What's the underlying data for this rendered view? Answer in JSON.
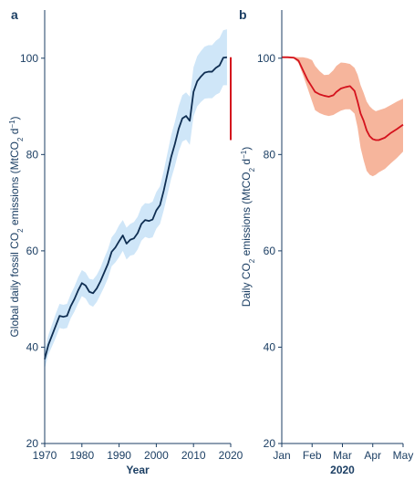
{
  "chart_data": [
    {
      "panel_label": "a",
      "type": "line",
      "xlabel": "Year",
      "ylabel_parts": [
        "Global daily fossil CO",
        "2",
        " emissions (MtCO",
        "2",
        " d",
        "−1",
        ")"
      ],
      "xlim": [
        1970,
        2020
      ],
      "ylim": [
        20,
        110
      ],
      "xticks": [
        1970,
        1980,
        1990,
        2000,
        2010,
        2020
      ],
      "yticks": [
        20,
        40,
        60,
        80,
        100
      ],
      "grid": false,
      "colors": {
        "line": "#0f2e52",
        "band": "#cfe6f8",
        "drop": "#d4121d",
        "axis": "#1b3e63"
      },
      "series": [
        {
          "x": [
            1970,
            1971,
            1972,
            1973,
            1974,
            1975,
            1976,
            1977,
            1978,
            1979,
            1980,
            1981,
            1982,
            1983,
            1984,
            1985,
            1986,
            1987,
            1988,
            1989,
            1990,
            1991,
            1992,
            1993,
            1994,
            1995,
            1996,
            1997,
            1998,
            1999,
            2000,
            2001,
            2002,
            2003,
            2004,
            2005,
            2006,
            2007,
            2008,
            2009,
            2010,
            2011,
            2012,
            2013,
            2014,
            2015,
            2016,
            2017,
            2018,
            2019
          ],
          "y": [
            37.5,
            40.5,
            42.5,
            44.5,
            46.5,
            46.3,
            46.5,
            48.5,
            50,
            51.8,
            53.3,
            52.8,
            51.5,
            51.2,
            52.2,
            53.7,
            55.5,
            57.3,
            59.8,
            60.7,
            62,
            63.2,
            61.5,
            62.3,
            62.6,
            63.7,
            65.6,
            66.4,
            66.2,
            66.5,
            68.4,
            69.5,
            72.5,
            76,
            79.5,
            82.2,
            85.3,
            87.5,
            88,
            87,
            93,
            95.2,
            96.2,
            97,
            97.2,
            97.2,
            98,
            98.5,
            100.1,
            100.2
          ],
          "band_upper": [
            39.5,
            42.5,
            44.8,
            47,
            49,
            48.8,
            49,
            51,
            52.6,
            54.5,
            56,
            55.5,
            54.2,
            54,
            55,
            56.5,
            58.5,
            60.3,
            62.8,
            63.8,
            65.3,
            66.4,
            64.8,
            65.6,
            66,
            67.1,
            69.1,
            69.9,
            69.8,
            70.2,
            72.2,
            73.4,
            76.6,
            80.3,
            84,
            86.8,
            90,
            92.3,
            92.9,
            92,
            98.1,
            100.4,
            101.5,
            102.4,
            102.7,
            102.7,
            103.6,
            104.2,
            105.8,
            106
          ],
          "band_lower": [
            35.5,
            38.5,
            40.2,
            42,
            44,
            43.8,
            44,
            46,
            47.4,
            49.1,
            50.6,
            50.1,
            48.8,
            48.4,
            49.4,
            50.9,
            52.5,
            54.3,
            56.8,
            57.6,
            58.7,
            60,
            58.2,
            59,
            59.2,
            60.3,
            62.1,
            62.9,
            62.6,
            62.8,
            64.6,
            65.6,
            68.4,
            71.7,
            75,
            77.6,
            80.6,
            82.7,
            83.1,
            82,
            87.9,
            90,
            90.9,
            91.6,
            91.7,
            91.7,
            92.4,
            92.8,
            94.4,
            94.4
          ]
        }
      ],
      "drop": {
        "x": 2020,
        "from": 100.2,
        "to": 83
      }
    },
    {
      "panel_label": "b",
      "type": "line",
      "xlabel": "2020",
      "ylabel_parts": [
        "Daily CO",
        "2",
        " emissions (MtCO",
        "2",
        " d",
        "−1",
        ")"
      ],
      "xlim": [
        0,
        4
      ],
      "ylim": [
        20,
        110
      ],
      "xticks": [
        0,
        1,
        2,
        3,
        4
      ],
      "xtick_labels": [
        "Jan",
        "Feb",
        "Mar",
        "Apr",
        "May"
      ],
      "yticks": [
        20,
        40,
        60,
        80,
        100
      ],
      "grid": false,
      "colors": {
        "line": "#d4121d",
        "band": "#f6b59c",
        "axis": "#1b3e63"
      },
      "series": [
        {
          "x": [
            0,
            0.2,
            0.4,
            0.55,
            0.7,
            0.85,
            1,
            1.1,
            1.25,
            1.4,
            1.55,
            1.7,
            1.8,
            1.95,
            2.1,
            2.25,
            2.4,
            2.5,
            2.6,
            2.7,
            2.8,
            2.9,
            3,
            3.1,
            3.2,
            3.4,
            3.6,
            3.8,
            4
          ],
          "y": [
            100.2,
            100.2,
            100.1,
            99.5,
            97.5,
            95.5,
            94,
            93,
            92.5,
            92.2,
            92,
            92.3,
            93,
            93.7,
            94,
            94.2,
            93.2,
            91,
            88.5,
            87,
            85,
            83.8,
            83.2,
            83,
            83,
            83.5,
            84.5,
            85.3,
            86.2
          ],
          "band_upper": [
            100.4,
            100.4,
            100.3,
            100.2,
            100.2,
            100,
            99.6,
            98.4,
            97.3,
            96.5,
            96.6,
            97.5,
            98.4,
            99.1,
            99,
            98.8,
            98,
            96.6,
            94.4,
            92.8,
            91,
            90,
            89.4,
            89,
            89.2,
            89.6,
            90.3,
            91,
            91.6
          ],
          "band_lower": [
            100,
            100,
            99.9,
            99,
            96.5,
            93.8,
            91,
            89.2,
            88.6,
            88.2,
            88,
            88.2,
            88.6,
            89.1,
            89.4,
            89.4,
            88.5,
            85.6,
            81.4,
            78.8,
            76.6,
            75.8,
            75.5,
            75.8,
            76.3,
            77,
            78.2,
            79.3,
            80.6
          ]
        }
      ]
    }
  ]
}
